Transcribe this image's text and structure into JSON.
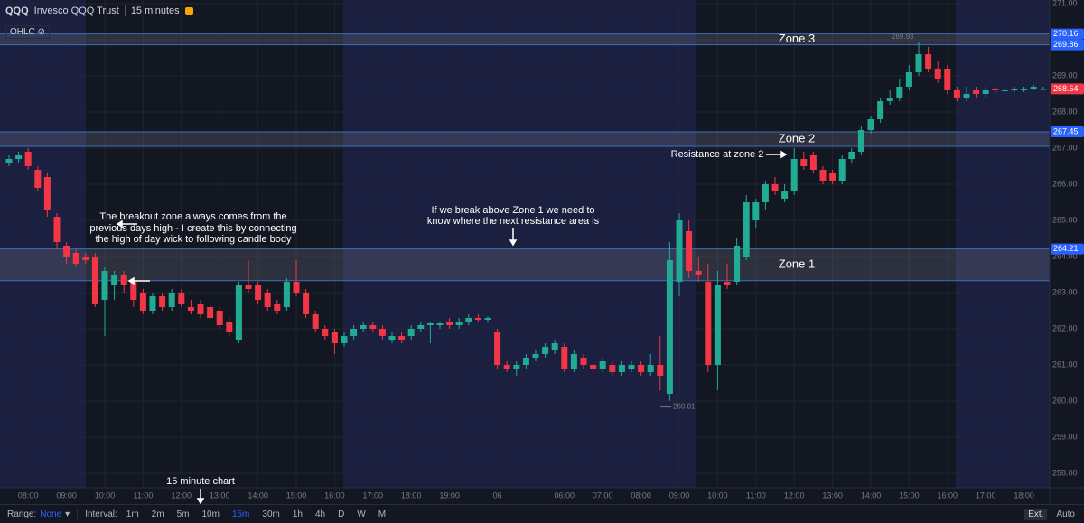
{
  "header": {
    "symbol": "QQQ",
    "name": "Invesco QQQ Trust",
    "interval": "15 minutes",
    "indicator": "OHLC"
  },
  "toolbar": {
    "range_label": "Range:",
    "range_value": "None",
    "interval_label": "Interval:",
    "intervals": [
      "1m",
      "2m",
      "5m",
      "10m",
      "15m",
      "30m",
      "1h",
      "4h",
      "D",
      "W",
      "M"
    ],
    "active_interval": 4,
    "right": [
      "Ext.",
      "Auto"
    ]
  },
  "chart_data": {
    "type": "candlestick",
    "categories": [
      null,
      null,
      "08:00",
      null,
      null,
      null,
      "09:00",
      null,
      null,
      null,
      "10:00",
      null,
      null,
      null,
      "11:00",
      null,
      null,
      null,
      "12:00",
      null,
      null,
      null,
      "13:00",
      null,
      null,
      null,
      "14:00",
      null,
      null,
      null,
      "15:00",
      null,
      null,
      null,
      "16:00",
      null,
      null,
      null,
      "17:00",
      null,
      null,
      null,
      "18:00",
      null,
      null,
      null,
      "19:00",
      null,
      null,
      null,
      null,
      "06",
      null,
      null,
      null,
      null,
      null,
      null,
      "06:00",
      null,
      null,
      null,
      "07:00",
      null,
      null,
      null,
      "08:00",
      null,
      null,
      null,
      "09:00",
      null,
      null,
      null,
      "10:00",
      null,
      null,
      null,
      "11:00",
      null,
      null,
      null,
      "12:00",
      null,
      null,
      null,
      "13:00",
      null,
      null,
      null,
      "14:00",
      null,
      null,
      null,
      "15:00",
      null,
      null,
      null,
      "16:00",
      null,
      null,
      null,
      "17:00",
      null,
      null,
      null,
      "18:00",
      null,
      null
    ],
    "open": [
      266.6,
      266.7,
      266.9,
      266.4,
      266.2,
      265.1,
      264.3,
      264.1,
      264.0,
      264.0,
      262.8,
      263.2,
      263.5,
      263.3,
      263.0,
      262.5,
      262.9,
      262.6,
      263.0,
      262.6,
      262.7,
      262.6,
      262.5,
      262.2,
      261.7,
      263.2,
      263.2,
      263.0,
      262.7,
      262.6,
      263.3,
      263.0,
      262.4,
      262.0,
      261.9,
      261.6,
      261.8,
      262.0,
      262.1,
      262.0,
      261.7,
      261.8,
      261.8,
      262.0,
      262.1,
      262.1,
      262.2,
      262.1,
      262.2,
      262.3,
      262.25,
      261.9,
      261.0,
      260.9,
      261.0,
      261.2,
      261.3,
      261.4,
      261.5,
      260.9,
      261.2,
      261.0,
      260.9,
      261.0,
      260.8,
      260.9,
      261.0,
      260.8,
      261.0,
      260.2,
      263.3,
      264.7,
      263.6,
      263.3,
      261.0,
      263.3,
      263.3,
      264.0,
      265.0,
      265.5,
      266.0,
      265.6,
      265.8,
      266.7,
      266.8,
      266.4,
      266.3,
      266.1,
      266.7,
      266.9,
      267.5,
      267.8,
      268.3,
      268.4,
      268.7,
      269.1,
      269.6,
      269.2,
      269.2,
      268.6,
      268.4,
      268.6,
      268.5,
      268.65,
      268.6,
      268.6,
      268.6,
      268.65,
      268.64
    ],
    "high": [
      266.8,
      266.9,
      267.0,
      266.5,
      266.3,
      265.2,
      264.4,
      264.2,
      264.1,
      264.1,
      263.7,
      263.6,
      263.6,
      263.4,
      263.1,
      263.0,
      263.0,
      263.1,
      263.1,
      262.8,
      262.8,
      262.7,
      262.6,
      262.3,
      263.3,
      263.9,
      263.3,
      263.1,
      262.8,
      263.4,
      263.9,
      263.1,
      262.5,
      262.1,
      262.0,
      261.9,
      262.1,
      262.2,
      262.2,
      262.1,
      261.9,
      261.9,
      262.1,
      262.2,
      262.2,
      262.2,
      262.3,
      262.3,
      262.4,
      262.4,
      262.35,
      262.0,
      261.1,
      261.1,
      261.3,
      261.4,
      261.6,
      261.7,
      261.6,
      261.4,
      261.3,
      261.1,
      261.2,
      261.1,
      261.1,
      261.1,
      261.1,
      261.3,
      261.8,
      264.4,
      265.2,
      265.0,
      264.0,
      263.8,
      263.6,
      263.8,
      264.5,
      265.7,
      265.6,
      266.1,
      266.2,
      266.0,
      267.0,
      266.9,
      266.9,
      266.5,
      266.4,
      266.8,
      267.0,
      267.6,
      267.9,
      268.4,
      268.6,
      268.9,
      269.3,
      269.93,
      269.8,
      269.4,
      269.3,
      268.7,
      268.7,
      268.7,
      268.7,
      268.7,
      268.7,
      268.7,
      268.7,
      268.75,
      268.7
    ],
    "low": [
      266.5,
      266.6,
      266.4,
      265.8,
      265.1,
      264.2,
      263.8,
      263.7,
      263.8,
      262.6,
      261.8,
      262.8,
      263.0,
      262.6,
      262.4,
      262.4,
      262.5,
      262.5,
      262.6,
      262.4,
      262.3,
      262.2,
      262.0,
      261.8,
      261.6,
      263.0,
      262.7,
      262.5,
      262.4,
      262.5,
      262.9,
      262.3,
      261.9,
      261.7,
      261.3,
      261.5,
      261.7,
      261.9,
      261.9,
      261.7,
      261.6,
      261.6,
      261.7,
      261.9,
      261.6,
      262.0,
      262.0,
      262.0,
      262.1,
      262.2,
      262.2,
      260.9,
      260.8,
      260.7,
      260.9,
      261.1,
      261.2,
      261.3,
      260.8,
      260.8,
      260.9,
      260.8,
      260.8,
      260.7,
      260.7,
      260.8,
      260.7,
      260.7,
      260.3,
      260.01,
      262.9,
      263.4,
      263.3,
      260.8,
      260.3,
      263.1,
      263.2,
      263.9,
      264.8,
      265.3,
      265.7,
      265.5,
      265.7,
      266.4,
      266.3,
      266.0,
      266.0,
      266.0,
      266.6,
      266.8,
      267.4,
      267.7,
      268.2,
      268.3,
      268.6,
      269.0,
      269.1,
      268.8,
      268.5,
      268.3,
      268.3,
      268.4,
      268.4,
      268.5,
      268.55,
      268.55,
      268.55,
      268.6,
      268.6
    ],
    "close": [
      266.7,
      266.8,
      266.5,
      265.9,
      265.3,
      264.4,
      264.0,
      263.8,
      263.9,
      262.7,
      263.6,
      263.5,
      263.2,
      262.8,
      262.5,
      262.9,
      262.6,
      263.0,
      262.7,
      262.5,
      262.4,
      262.3,
      262.1,
      261.9,
      263.2,
      263.1,
      262.8,
      262.6,
      262.5,
      263.3,
      263.0,
      262.4,
      262.0,
      261.8,
      261.6,
      261.8,
      262.0,
      262.1,
      262.0,
      261.8,
      261.8,
      261.7,
      262.0,
      262.1,
      262.15,
      262.15,
      262.1,
      262.2,
      262.3,
      262.25,
      262.3,
      261.0,
      260.9,
      261.0,
      261.2,
      261.3,
      261.5,
      261.6,
      260.9,
      261.3,
      261.0,
      260.9,
      261.1,
      260.8,
      261.0,
      261.0,
      260.8,
      261.0,
      260.7,
      263.9,
      265.0,
      263.6,
      263.5,
      261.0,
      263.2,
      263.2,
      264.3,
      265.5,
      265.5,
      266.0,
      265.8,
      265.8,
      266.7,
      266.5,
      266.4,
      266.1,
      266.1,
      266.7,
      266.9,
      267.5,
      267.8,
      268.3,
      268.4,
      268.7,
      269.1,
      269.6,
      269.2,
      268.9,
      268.6,
      268.4,
      268.5,
      268.5,
      268.6,
      268.6,
      268.6,
      268.65,
      268.65,
      268.7,
      268.64
    ],
    "up_color": "#22ab94",
    "down_color": "#f23645",
    "ylim": [
      257.6,
      271.1
    ],
    "yticks": [
      {
        "value": 258,
        "label": "258.00"
      },
      {
        "value": 259,
        "label": "259.00"
      },
      {
        "value": 260,
        "label": "260.00"
      },
      {
        "value": 261,
        "label": "261.00"
      },
      {
        "value": 262,
        "label": "262.00"
      },
      {
        "value": 263,
        "label": "263.00"
      },
      {
        "value": 264,
        "label": "264.00"
      },
      {
        "value": 265,
        "label": "265.00"
      },
      {
        "value": 266,
        "label": "266.00"
      },
      {
        "value": 267,
        "label": "267.00"
      },
      {
        "value": 268,
        "label": "268.00"
      },
      {
        "value": 269,
        "label": "269.00"
      },
      {
        "value": 270,
        "label": "270.00"
      },
      {
        "value": 271,
        "label": "271.00"
      }
    ],
    "price_markers": [
      {
        "value": 270.16,
        "color": "#2962ff"
      },
      {
        "value": 269.86,
        "color": "#2962ff"
      },
      {
        "value": 268.64,
        "color": "#f23645"
      },
      {
        "value": 267.45,
        "color": "#2962ff"
      },
      {
        "value": 264.21,
        "color": "#2962ff"
      }
    ],
    "zones": [
      {
        "label": "Zone 3",
        "top": 270.16,
        "bottom": 269.86
      },
      {
        "label": "Zone 2",
        "top": 267.45,
        "bottom": 267.05
      },
      {
        "label": "Zone 1",
        "top": 264.21,
        "bottom": 263.33
      }
    ],
    "annotations": [
      {
        "lines": [
          "The breakout zone always comes from the",
          "previous days high - I create this by connecting",
          "the high of day wick to following candle body"
        ]
      },
      {
        "lines": [
          "If we break above Zone 1 we need to",
          "know where the next resistance area is"
        ]
      },
      {
        "lines": [
          "Resistance at zone 2"
        ]
      },
      {
        "lines": [
          "15 minute chart"
        ]
      }
    ]
  }
}
